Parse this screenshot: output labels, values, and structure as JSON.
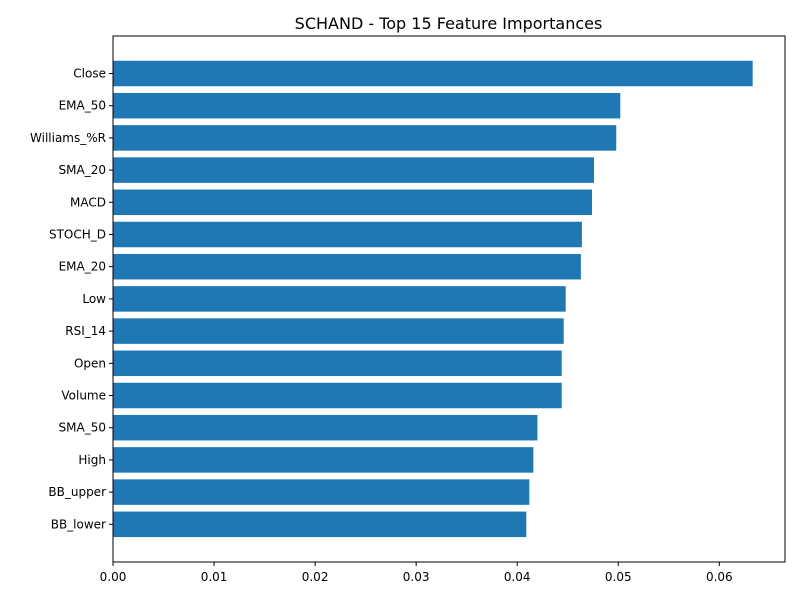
{
  "chart_data": {
    "type": "bar",
    "orientation": "horizontal",
    "title": "SCHAND - Top 15 Feature Importances",
    "xlabel": "",
    "ylabel": "",
    "categories": [
      "Close",
      "EMA_50",
      "Williams_%R",
      "SMA_20",
      "MACD",
      "STOCH_D",
      "EMA_20",
      "Low",
      "RSI_14",
      "Open",
      "Volume",
      "SMA_50",
      "High",
      "BB_upper",
      "BB_lower"
    ],
    "values": [
      0.0633,
      0.0502,
      0.0498,
      0.0476,
      0.0474,
      0.0464,
      0.0463,
      0.0448,
      0.0446,
      0.0444,
      0.0444,
      0.042,
      0.0416,
      0.0412,
      0.0409
    ],
    "xlim": [
      0,
      0.0665
    ],
    "xticks": [
      "0.00",
      "0.01",
      "0.02",
      "0.03",
      "0.04",
      "0.05",
      "0.06"
    ],
    "grid": false,
    "bar_color": "#1f77b4"
  }
}
